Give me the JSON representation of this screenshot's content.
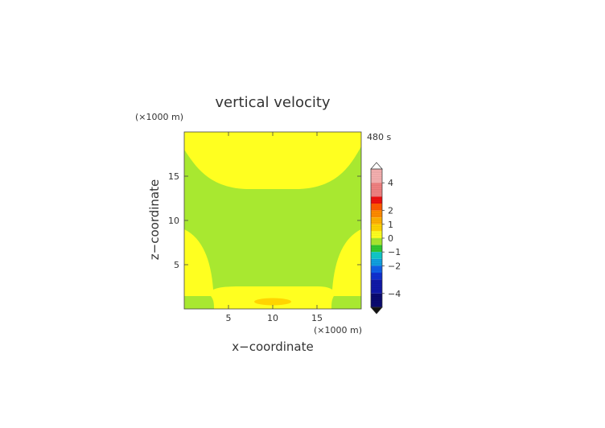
{
  "chart_data": {
    "type": "heatmap",
    "title": "vertical velocity",
    "time_label": "480 s",
    "xlabel": "x−coordinate",
    "ylabel": "z−coordinate",
    "x_unit_label": "(×1000 m)",
    "y_unit_label": "(×1000 m)",
    "xlim": [
      0,
      20
    ],
    "ylim": [
      0,
      20
    ],
    "x_ticks": [
      5,
      10,
      15
    ],
    "y_ticks": [
      5,
      10,
      15
    ],
    "x_tick_labels": [
      "5",
      "10",
      "15"
    ],
    "y_tick_labels": [
      "5",
      "10",
      "15"
    ],
    "grid": false,
    "colorbar": {
      "placement": "right",
      "range": [
        -5,
        5
      ],
      "tick_values": [
        4,
        2,
        1,
        0,
        -1,
        -2,
        -4
      ],
      "tick_labels": [
        "4",
        "2",
        "1",
        "0",
        "−1",
        "−2",
        "−4"
      ],
      "levels": [
        {
          "from": 4,
          "to": 5,
          "color": "#f5b0b0"
        },
        {
          "from": 3,
          "to": 4,
          "color": "#f08080"
        },
        {
          "from": 2.5,
          "to": 3,
          "color": "#ee1010"
        },
        {
          "from": 2,
          "to": 2.5,
          "color": "#ff5a00"
        },
        {
          "from": 1.5,
          "to": 2,
          "color": "#ff8a00"
        },
        {
          "from": 1,
          "to": 1.5,
          "color": "#ffb000"
        },
        {
          "from": 0.5,
          "to": 1,
          "color": "#ffd400"
        },
        {
          "from": 0,
          "to": 0.5,
          "color": "#ffff20"
        },
        {
          "from": -0.5,
          "to": 0,
          "color": "#a8e830"
        },
        {
          "from": -1,
          "to": -0.5,
          "color": "#30c830"
        },
        {
          "from": -1.5,
          "to": -1,
          "color": "#10c8c8"
        },
        {
          "from": -2,
          "to": -1.5,
          "color": "#10a0e0"
        },
        {
          "from": -2.5,
          "to": -2,
          "color": "#1060e8"
        },
        {
          "from": -3,
          "to": -2.5,
          "color": "#1030d0"
        },
        {
          "from": -4,
          "to": -3,
          "color": "#1018a8"
        },
        {
          "from": -5,
          "to": -4,
          "color": "#0a0a70"
        }
      ]
    },
    "regions": [
      {
        "level_color": "#a8e830",
        "description": "background",
        "value_range": [
          -0.5,
          0
        ]
      },
      {
        "level_color": "#ffff20",
        "description": "upper updraft",
        "value_range": [
          0,
          0.5
        ]
      },
      {
        "level_color": "#ffff20",
        "description": "left lower lobe",
        "value_range": [
          0,
          0.5
        ]
      },
      {
        "level_color": "#ffff20",
        "description": "right lower lobe",
        "value_range": [
          0,
          0.5
        ]
      },
      {
        "level_color": "#ffff20",
        "description": "bottom band",
        "value_range": [
          0,
          0.5
        ]
      },
      {
        "level_color": "#ffd400",
        "description": "bottom core",
        "value_range": [
          0.5,
          1
        ]
      }
    ]
  }
}
